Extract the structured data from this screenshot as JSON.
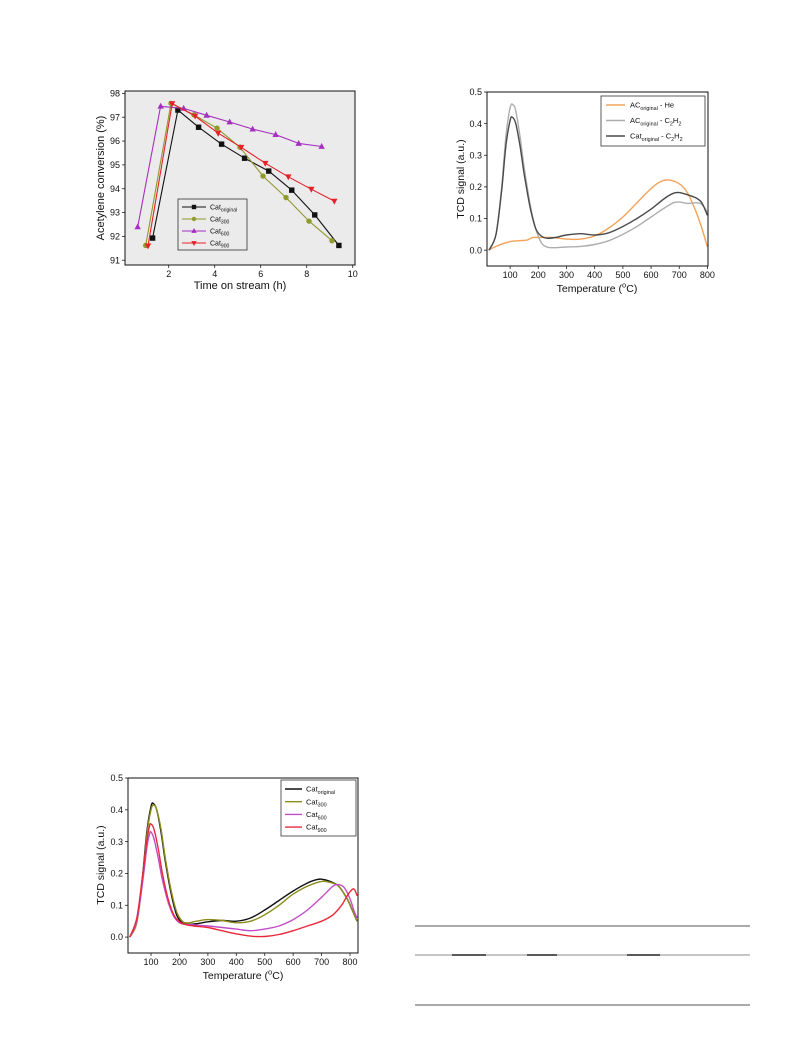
{
  "chart_data": [
    {
      "type": "line",
      "xlabel": "Time on stream (h)",
      "ylabel": "Acetylene conversion (%)",
      "xlim": [
        0.1,
        10.1
      ],
      "ylim": [
        90.8,
        98.1
      ],
      "xticks": [
        "2",
        "4",
        "6",
        "8",
        "10"
      ],
      "yticks": [
        "91",
        "92",
        "93",
        "94",
        "95",
        "96",
        "97",
        "98"
      ],
      "grid": false,
      "legend_position": "center",
      "series": [
        {
          "label": [
            {
              "t": "Cat"
            },
            {
              "t": "original",
              "sub": true
            }
          ],
          "color": "#111111",
          "marker": "square",
          "x": [
            1.3,
            2.4,
            3.3,
            4.3,
            5.3,
            6.35,
            7.35,
            8.35,
            9.4
          ],
          "y": [
            91.93,
            97.3,
            96.58,
            95.87,
            95.28,
            94.74,
            93.94,
            92.9,
            91.62
          ]
        },
        {
          "label": [
            {
              "t": "Cat"
            },
            {
              "t": "300",
              "sub": true
            }
          ],
          "color": "#8f9a2c",
          "marker": "circle",
          "x": [
            1.0,
            2.1,
            3.1,
            4.1,
            5.1,
            6.1,
            7.1,
            8.1,
            9.1
          ],
          "y": [
            91.62,
            97.58,
            97.1,
            96.54,
            95.74,
            94.53,
            93.63,
            92.64,
            91.82
          ]
        },
        {
          "label": [
            {
              "t": "Cat"
            },
            {
              "t": "600",
              "sub": true
            }
          ],
          "color": "#a52fc0",
          "marker": "triangle-up",
          "x": [
            0.65,
            1.65,
            2.65,
            3.65,
            4.65,
            5.65,
            6.65,
            7.65,
            8.65
          ],
          "y": [
            92.4,
            97.46,
            97.37,
            97.08,
            96.8,
            96.5,
            96.27,
            95.9,
            95.77
          ]
        },
        {
          "label": [
            {
              "t": "Cat"
            },
            {
              "t": "900",
              "sub": true
            }
          ],
          "color": "#e8202a",
          "marker": "triangle-down",
          "x": [
            1.1,
            2.15,
            3.15,
            4.15,
            5.15,
            6.2,
            7.2,
            8.2,
            9.2
          ],
          "y": [
            91.6,
            97.57,
            97.05,
            96.33,
            95.74,
            95.07,
            94.5,
            93.98,
            93.48
          ]
        }
      ]
    },
    {
      "type": "line",
      "xlabel": [
        {
          "t": "Temperature ("
        },
        {
          "t": "o",
          "sup": true
        },
        {
          "t": "C)"
        }
      ],
      "ylabel": "TCD signal (a.u.)",
      "xlim": [
        18,
        802
      ],
      "ylim": [
        -0.05,
        0.5
      ],
      "xticks": [
        "100",
        "200",
        "300",
        "400",
        "500",
        "600",
        "700",
        "800"
      ],
      "yticks": [
        "0.0",
        "0.1",
        "0.2",
        "0.3",
        "0.4",
        "0.5"
      ],
      "grid": false,
      "legend_position": "top-right",
      "series": [
        {
          "label": [
            {
              "t": "AC"
            },
            {
              "t": "original",
              "sub": true
            },
            {
              "t": " - He"
            }
          ],
          "color": "#f4a35a",
          "x": [
            25,
            50,
            80,
            100,
            130,
            160,
            180,
            200,
            250,
            300,
            350,
            400,
            450,
            500,
            550,
            600,
            630,
            660,
            700,
            730,
            760,
            780,
            800
          ],
          "y": [
            0.0,
            0.012,
            0.022,
            0.027,
            0.03,
            0.032,
            0.04,
            0.04,
            0.04,
            0.035,
            0.035,
            0.045,
            0.07,
            0.105,
            0.15,
            0.195,
            0.215,
            0.222,
            0.21,
            0.18,
            0.12,
            0.07,
            0.01
          ]
        },
        {
          "label": [
            {
              "t": "AC"
            },
            {
              "t": "original",
              "sub": true
            },
            {
              "t": " - C"
            },
            {
              "t": "2",
              "sub": true
            },
            {
              "t": "H"
            },
            {
              "t": "2",
              "sub": true
            }
          ],
          "color": "#adadad",
          "x": [
            25,
            50,
            70,
            85,
            100,
            110,
            120,
            135,
            150,
            170,
            190,
            210,
            230,
            260,
            300,
            350,
            400,
            450,
            500,
            550,
            600,
            650,
            680,
            700,
            730,
            760,
            780,
            800
          ],
          "y": [
            0.0,
            0.05,
            0.2,
            0.36,
            0.45,
            0.46,
            0.44,
            0.36,
            0.26,
            0.15,
            0.07,
            0.025,
            0.01,
            0.008,
            0.01,
            0.012,
            0.018,
            0.03,
            0.05,
            0.075,
            0.105,
            0.135,
            0.15,
            0.152,
            0.148,
            0.15,
            0.145,
            0.12
          ]
        },
        {
          "label": [
            {
              "t": "Cat"
            },
            {
              "t": "original",
              "sub": true
            },
            {
              "t": " - C"
            },
            {
              "t": "2",
              "sub": true
            },
            {
              "t": "H"
            },
            {
              "t": "2",
              "sub": true
            }
          ],
          "color": "#4a4a4a",
          "x": [
            25,
            50,
            70,
            85,
            100,
            108,
            120,
            135,
            150,
            170,
            190,
            210,
            230,
            260,
            300,
            350,
            400,
            450,
            500,
            550,
            600,
            650,
            680,
            700,
            730,
            760,
            780,
            800
          ],
          "y": [
            0.0,
            0.05,
            0.19,
            0.33,
            0.41,
            0.42,
            0.4,
            0.33,
            0.24,
            0.14,
            0.07,
            0.045,
            0.038,
            0.04,
            0.048,
            0.052,
            0.048,
            0.055,
            0.075,
            0.1,
            0.13,
            0.165,
            0.18,
            0.182,
            0.175,
            0.165,
            0.15,
            0.11
          ]
        }
      ]
    },
    {
      "type": "line",
      "xlabel": [
        {
          "t": "Temperature ("
        },
        {
          "t": "o",
          "sup": true
        },
        {
          "t": "C)"
        }
      ],
      "ylabel": "TCD signal (a.u.)",
      "xlim": [
        19,
        828
      ],
      "ylim": [
        -0.05,
        0.5
      ],
      "xticks": [
        "100",
        "200",
        "300",
        "400",
        "500",
        "600",
        "700",
        "800"
      ],
      "yticks": [
        "0.0",
        "0.1",
        "0.2",
        "0.3",
        "0.4",
        "0.5"
      ],
      "grid": false,
      "legend_position": "top-right",
      "series": [
        {
          "label": [
            {
              "t": "Cat"
            },
            {
              "t": "original",
              "sub": true
            }
          ],
          "color": "#111111",
          "x": [
            25,
            50,
            70,
            85,
            100,
            108,
            120,
            135,
            150,
            170,
            190,
            210,
            230,
            260,
            300,
            350,
            400,
            450,
            500,
            550,
            600,
            650,
            680,
            700,
            730,
            760,
            790,
            810,
            825
          ],
          "y": [
            0.0,
            0.05,
            0.19,
            0.33,
            0.41,
            0.42,
            0.4,
            0.33,
            0.24,
            0.14,
            0.07,
            0.045,
            0.04,
            0.042,
            0.048,
            0.052,
            0.05,
            0.06,
            0.085,
            0.115,
            0.145,
            0.17,
            0.18,
            0.182,
            0.175,
            0.16,
            0.12,
            0.08,
            0.05
          ]
        },
        {
          "label": [
            {
              "t": "Cat"
            },
            {
              "t": "300",
              "sub": true
            }
          ],
          "color": "#8c8c1c",
          "x": [
            25,
            50,
            70,
            85,
            100,
            110,
            120,
            135,
            150,
            170,
            190,
            210,
            230,
            260,
            300,
            350,
            400,
            450,
            500,
            550,
            600,
            650,
            700,
            730,
            760,
            790,
            810,
            825
          ],
          "y": [
            0.0,
            0.045,
            0.18,
            0.32,
            0.4,
            0.415,
            0.4,
            0.34,
            0.25,
            0.15,
            0.08,
            0.05,
            0.045,
            0.05,
            0.055,
            0.052,
            0.045,
            0.05,
            0.07,
            0.1,
            0.135,
            0.16,
            0.175,
            0.172,
            0.16,
            0.12,
            0.08,
            0.05
          ]
        },
        {
          "label": [
            {
              "t": "Cat"
            },
            {
              "t": "600",
              "sub": true
            }
          ],
          "color": "#c24cc8",
          "x": [
            25,
            50,
            70,
            85,
            95,
            100,
            110,
            125,
            140,
            160,
            180,
            200,
            220,
            250,
            300,
            350,
            400,
            450,
            500,
            550,
            600,
            650,
            700,
            740,
            760,
            780,
            800,
            815,
            825
          ],
          "y": [
            0.0,
            0.05,
            0.17,
            0.28,
            0.325,
            0.33,
            0.31,
            0.25,
            0.18,
            0.11,
            0.065,
            0.045,
            0.04,
            0.038,
            0.035,
            0.03,
            0.025,
            0.02,
            0.025,
            0.035,
            0.055,
            0.085,
            0.125,
            0.16,
            0.165,
            0.155,
            0.12,
            0.08,
            0.06
          ]
        },
        {
          "label": [
            {
              "t": "Cat"
            },
            {
              "t": "900",
              "sub": true
            }
          ],
          "color": "#e8283a",
          "x": [
            25,
            50,
            70,
            85,
            95,
            100,
            110,
            125,
            140,
            160,
            180,
            200,
            220,
            250,
            300,
            350,
            400,
            450,
            500,
            550,
            600,
            650,
            700,
            740,
            770,
            790,
            805,
            815,
            825
          ],
          "y": [
            0.0,
            0.06,
            0.19,
            0.3,
            0.35,
            0.355,
            0.34,
            0.28,
            0.2,
            0.12,
            0.07,
            0.048,
            0.04,
            0.035,
            0.03,
            0.02,
            0.01,
            0.003,
            0.002,
            0.008,
            0.02,
            0.035,
            0.05,
            0.07,
            0.1,
            0.13,
            0.148,
            0.15,
            0.13
          ]
        }
      ]
    }
  ]
}
